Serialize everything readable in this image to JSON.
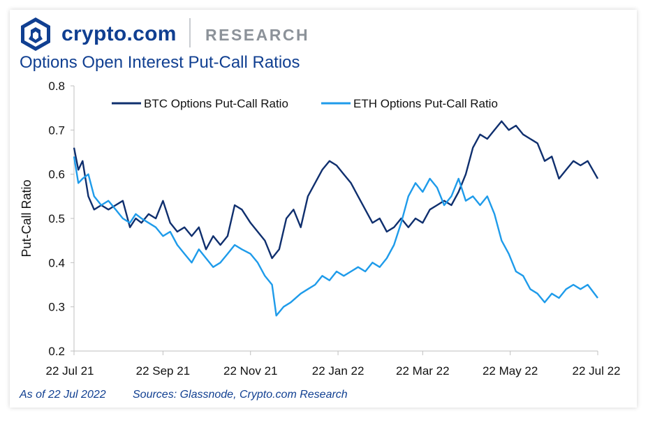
{
  "header": {
    "brand": "crypto.com",
    "section": "RESEARCH",
    "logo_icon": "crypto-com-lion-shield-icon"
  },
  "chart_title": "Options Open Interest Put-Call Ratios",
  "footer": {
    "as_of": "As of 22 Jul 2022",
    "sources": "Sources: Glassnode, Crypto.com Research"
  },
  "colors": {
    "btc": "#0f2f6e",
    "eth": "#1e9bea",
    "brand": "#103f91",
    "text": "#111111",
    "axis": "#bfbfbf"
  },
  "chart_data": {
    "type": "line",
    "title": "Options Open Interest Put-Call Ratios",
    "xlabel": "",
    "ylabel": "Put-Call Ratio",
    "ylim": [
      0.2,
      0.8
    ],
    "yticks": [
      "0.2",
      "0.3",
      "0.4",
      "0.5",
      "0.6",
      "0.7",
      "0.8"
    ],
    "xlim": [
      "2021-07-22",
      "2022-07-22"
    ],
    "xticks": [
      {
        "date": "2021-07-22",
        "label": "22 Jul 21"
      },
      {
        "date": "2021-09-22",
        "label": "22 Sep 21"
      },
      {
        "date": "2021-11-22",
        "label": "22 Nov 21"
      },
      {
        "date": "2022-01-22",
        "label": "22 Jan 22"
      },
      {
        "date": "2022-03-22",
        "label": "22 Mar 22"
      },
      {
        "date": "2022-05-22",
        "label": "22 May 22"
      },
      {
        "date": "2022-07-22",
        "label": "22 Jul 22"
      }
    ],
    "legend_position": "top",
    "grid": false,
    "series": [
      {
        "name": "BTC Options Put-Call Ratio",
        "color": "#0f2f6e",
        "points": [
          [
            "2021-07-22",
            0.66
          ],
          [
            "2021-07-25",
            0.61
          ],
          [
            "2021-07-28",
            0.63
          ],
          [
            "2021-08-01",
            0.55
          ],
          [
            "2021-08-05",
            0.52
          ],
          [
            "2021-08-10",
            0.53
          ],
          [
            "2021-08-15",
            0.52
          ],
          [
            "2021-08-20",
            0.53
          ],
          [
            "2021-08-25",
            0.54
          ],
          [
            "2021-08-30",
            0.48
          ],
          [
            "2021-09-03",
            0.5
          ],
          [
            "2021-09-07",
            0.49
          ],
          [
            "2021-09-12",
            0.51
          ],
          [
            "2021-09-17",
            0.5
          ],
          [
            "2021-09-22",
            0.54
          ],
          [
            "2021-09-27",
            0.49
          ],
          [
            "2021-10-02",
            0.47
          ],
          [
            "2021-10-07",
            0.48
          ],
          [
            "2021-10-12",
            0.46
          ],
          [
            "2021-10-17",
            0.48
          ],
          [
            "2021-10-22",
            0.43
          ],
          [
            "2021-10-27",
            0.46
          ],
          [
            "2021-11-01",
            0.44
          ],
          [
            "2021-11-06",
            0.46
          ],
          [
            "2021-11-11",
            0.53
          ],
          [
            "2021-11-16",
            0.52
          ],
          [
            "2021-11-22",
            0.49
          ],
          [
            "2021-11-27",
            0.47
          ],
          [
            "2021-12-02",
            0.45
          ],
          [
            "2021-12-07",
            0.41
          ],
          [
            "2021-12-12",
            0.43
          ],
          [
            "2021-12-17",
            0.5
          ],
          [
            "2021-12-22",
            0.52
          ],
          [
            "2021-12-27",
            0.48
          ],
          [
            "2022-01-01",
            0.55
          ],
          [
            "2022-01-06",
            0.58
          ],
          [
            "2022-01-11",
            0.61
          ],
          [
            "2022-01-16",
            0.63
          ],
          [
            "2022-01-21",
            0.62
          ],
          [
            "2022-01-26",
            0.6
          ],
          [
            "2022-01-31",
            0.58
          ],
          [
            "2022-02-05",
            0.55
          ],
          [
            "2022-02-10",
            0.52
          ],
          [
            "2022-02-15",
            0.49
          ],
          [
            "2022-02-20",
            0.5
          ],
          [
            "2022-02-25",
            0.47
          ],
          [
            "2022-03-02",
            0.48
          ],
          [
            "2022-03-07",
            0.5
          ],
          [
            "2022-03-12",
            0.48
          ],
          [
            "2022-03-17",
            0.5
          ],
          [
            "2022-03-22",
            0.49
          ],
          [
            "2022-03-27",
            0.52
          ],
          [
            "2022-04-01",
            0.53
          ],
          [
            "2022-04-06",
            0.54
          ],
          [
            "2022-04-11",
            0.53
          ],
          [
            "2022-04-16",
            0.56
          ],
          [
            "2022-04-21",
            0.6
          ],
          [
            "2022-04-26",
            0.66
          ],
          [
            "2022-05-01",
            0.69
          ],
          [
            "2022-05-06",
            0.68
          ],
          [
            "2022-05-11",
            0.7
          ],
          [
            "2022-05-16",
            0.72
          ],
          [
            "2022-05-21",
            0.7
          ],
          [
            "2022-05-26",
            0.71
          ],
          [
            "2022-05-31",
            0.69
          ],
          [
            "2022-06-05",
            0.68
          ],
          [
            "2022-06-10",
            0.67
          ],
          [
            "2022-06-15",
            0.63
          ],
          [
            "2022-06-20",
            0.64
          ],
          [
            "2022-06-25",
            0.59
          ],
          [
            "2022-06-30",
            0.61
          ],
          [
            "2022-07-05",
            0.63
          ],
          [
            "2022-07-10",
            0.62
          ],
          [
            "2022-07-15",
            0.63
          ],
          [
            "2022-07-22",
            0.59
          ]
        ]
      },
      {
        "name": "ETH Options Put-Call Ratio",
        "color": "#1e9bea",
        "points": [
          [
            "2021-07-22",
            0.64
          ],
          [
            "2021-07-25",
            0.58
          ],
          [
            "2021-07-28",
            0.59
          ],
          [
            "2021-08-01",
            0.6
          ],
          [
            "2021-08-05",
            0.55
          ],
          [
            "2021-08-10",
            0.53
          ],
          [
            "2021-08-15",
            0.54
          ],
          [
            "2021-08-20",
            0.52
          ],
          [
            "2021-08-25",
            0.5
          ],
          [
            "2021-08-30",
            0.49
          ],
          [
            "2021-09-03",
            0.51
          ],
          [
            "2021-09-07",
            0.5
          ],
          [
            "2021-09-12",
            0.49
          ],
          [
            "2021-09-17",
            0.48
          ],
          [
            "2021-09-22",
            0.46
          ],
          [
            "2021-09-27",
            0.47
          ],
          [
            "2021-10-02",
            0.44
          ],
          [
            "2021-10-07",
            0.42
          ],
          [
            "2021-10-12",
            0.4
          ],
          [
            "2021-10-17",
            0.43
          ],
          [
            "2021-10-22",
            0.41
          ],
          [
            "2021-10-27",
            0.39
          ],
          [
            "2021-11-01",
            0.4
          ],
          [
            "2021-11-06",
            0.42
          ],
          [
            "2021-11-11",
            0.44
          ],
          [
            "2021-11-16",
            0.43
          ],
          [
            "2021-11-22",
            0.42
          ],
          [
            "2021-11-27",
            0.4
          ],
          [
            "2021-12-02",
            0.37
          ],
          [
            "2021-12-07",
            0.35
          ],
          [
            "2021-12-10",
            0.28
          ],
          [
            "2021-12-15",
            0.3
          ],
          [
            "2021-12-20",
            0.31
          ],
          [
            "2021-12-27",
            0.33
          ],
          [
            "2022-01-01",
            0.34
          ],
          [
            "2022-01-06",
            0.35
          ],
          [
            "2022-01-11",
            0.37
          ],
          [
            "2022-01-16",
            0.36
          ],
          [
            "2022-01-21",
            0.38
          ],
          [
            "2022-01-26",
            0.37
          ],
          [
            "2022-01-31",
            0.38
          ],
          [
            "2022-02-05",
            0.39
          ],
          [
            "2022-02-10",
            0.38
          ],
          [
            "2022-02-15",
            0.4
          ],
          [
            "2022-02-20",
            0.39
          ],
          [
            "2022-02-25",
            0.41
          ],
          [
            "2022-03-02",
            0.44
          ],
          [
            "2022-03-07",
            0.49
          ],
          [
            "2022-03-12",
            0.55
          ],
          [
            "2022-03-17",
            0.58
          ],
          [
            "2022-03-22",
            0.56
          ],
          [
            "2022-03-27",
            0.59
          ],
          [
            "2022-04-01",
            0.57
          ],
          [
            "2022-04-06",
            0.53
          ],
          [
            "2022-04-11",
            0.55
          ],
          [
            "2022-04-16",
            0.59
          ],
          [
            "2022-04-21",
            0.54
          ],
          [
            "2022-04-26",
            0.55
          ],
          [
            "2022-05-01",
            0.53
          ],
          [
            "2022-05-06",
            0.55
          ],
          [
            "2022-05-11",
            0.51
          ],
          [
            "2022-05-16",
            0.45
          ],
          [
            "2022-05-21",
            0.42
          ],
          [
            "2022-05-26",
            0.38
          ],
          [
            "2022-05-31",
            0.37
          ],
          [
            "2022-06-05",
            0.34
          ],
          [
            "2022-06-10",
            0.33
          ],
          [
            "2022-06-15",
            0.31
          ],
          [
            "2022-06-20",
            0.33
          ],
          [
            "2022-06-25",
            0.32
          ],
          [
            "2022-06-30",
            0.34
          ],
          [
            "2022-07-05",
            0.35
          ],
          [
            "2022-07-10",
            0.34
          ],
          [
            "2022-07-15",
            0.35
          ],
          [
            "2022-07-22",
            0.32
          ]
        ]
      }
    ]
  }
}
